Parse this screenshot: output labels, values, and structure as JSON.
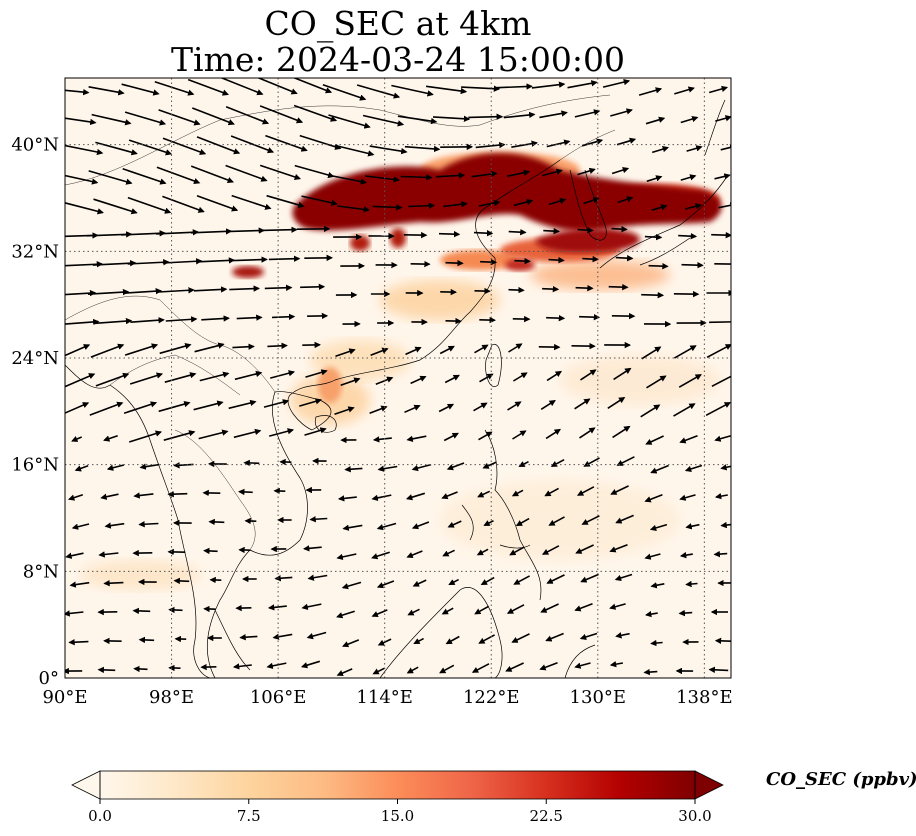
{
  "title": {
    "line1": "CO_SEC at 4km",
    "line2": "Time: 2024-03-24 15:00:00"
  },
  "map": {
    "extent": {
      "lon": [
        90,
        140
      ],
      "lat": [
        0,
        45
      ]
    },
    "lon_ticks": [
      {
        "value": 90,
        "label": "90°E"
      },
      {
        "value": 98,
        "label": "98°E"
      },
      {
        "value": 106,
        "label": "106°E"
      },
      {
        "value": 114,
        "label": "114°E"
      },
      {
        "value": 122,
        "label": "122°E"
      },
      {
        "value": 130,
        "label": "130°E"
      },
      {
        "value": 138,
        "label": "138°E"
      }
    ],
    "lat_ticks": [
      {
        "value": 0,
        "label": "0°"
      },
      {
        "value": 8,
        "label": "8°N"
      },
      {
        "value": 16,
        "label": "16°N"
      },
      {
        "value": 24,
        "label": "24°N"
      },
      {
        "value": 32,
        "label": "32°N"
      },
      {
        "value": 40,
        "label": "40°N"
      }
    ],
    "gridlines": true,
    "background_color": "#fff6eb",
    "coastline_color": "#000000",
    "wind_vectors": true
  },
  "colorbar": {
    "label": "CO_SEC (ppbv)",
    "min": 0.0,
    "max": 30.0,
    "ticks": [
      "0.0",
      "7.5",
      "15.0",
      "22.5",
      "30.0"
    ],
    "extend": "both",
    "colormap": "OrRd",
    "stops": [
      "#fff7ec",
      "#fee8c8",
      "#fdd49e",
      "#fdbb84",
      "#fc8d59",
      "#ef6548",
      "#d7301f",
      "#b30000",
      "#7f0000"
    ]
  }
}
